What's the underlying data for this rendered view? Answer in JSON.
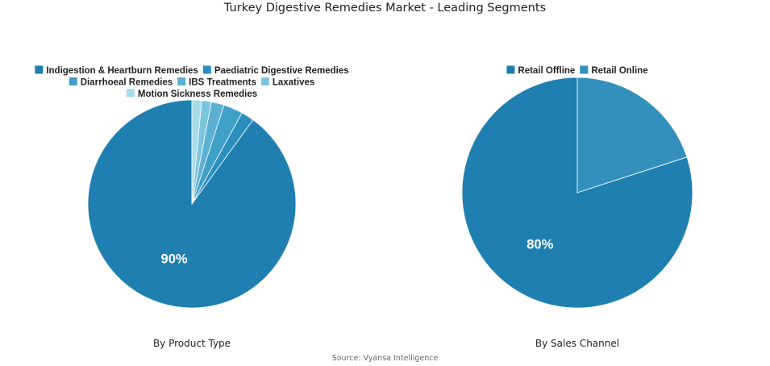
{
  "title": "Turkey Digestive Remedies Market - Leading Segments",
  "source": "Source: Vyansa Intelligence",
  "chart_data": [
    {
      "type": "pie",
      "subtitle": "By Product Type",
      "legend_placement": "top",
      "slices": [
        {
          "label": "Indigestion & Heartburn Remedies",
          "value": 90,
          "color": "#1f7fb0",
          "show_label": "90%"
        },
        {
          "label": "Paediatric Digestive Remedies",
          "value": 2,
          "color": "#2b8fbe"
        },
        {
          "label": "Diarrhoeal Remedies",
          "value": 3,
          "color": "#41a0c8"
        },
        {
          "label": "IBS Treatments",
          "value": 2,
          "color": "#5bb1d3"
        },
        {
          "label": "Laxatives",
          "value": 1.5,
          "color": "#7cc5de"
        },
        {
          "label": "Motion Sickness Remedies",
          "value": 1.5,
          "color": "#a6dbea"
        }
      ]
    },
    {
      "type": "pie",
      "subtitle": "By Sales Channel",
      "legend_placement": "top",
      "slices": [
        {
          "label": "Retail Offline",
          "value": 80,
          "color": "#1f7fb0",
          "show_label": "80%"
        },
        {
          "label": "Retail Online",
          "value": 20,
          "color": "#3390bd"
        }
      ]
    }
  ]
}
